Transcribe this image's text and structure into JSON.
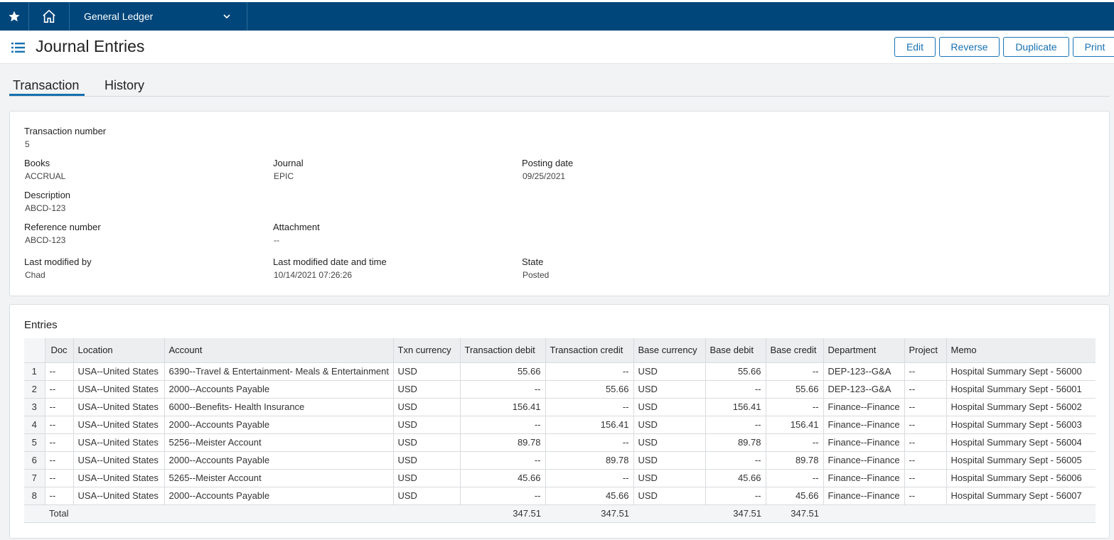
{
  "nav": {
    "menu": "General Ledger"
  },
  "header": {
    "title": "Journal Entries",
    "actions": [
      "Edit",
      "Reverse",
      "Duplicate",
      "Print"
    ]
  },
  "tabs": [
    "Transaction",
    "History"
  ],
  "details": {
    "rows": [
      [
        {
          "label": "Transaction number",
          "value": "5"
        }
      ],
      [
        {
          "label": "Books",
          "value": "ACCRUAL"
        },
        {
          "label": "Journal",
          "value": "EPIC"
        },
        {
          "label": "Posting date",
          "value": "09/25/2021"
        }
      ],
      [
        {
          "label": "Description",
          "value": "ABCD-123"
        }
      ],
      [
        {
          "label": "Reference number",
          "value": "ABCD-123"
        },
        {
          "label": "Attachment",
          "value": "--"
        }
      ],
      [
        {
          "label": "Last modified by",
          "value": "Chad"
        },
        {
          "label": "Last modified date and time",
          "value": "10/14/2021 07:26:26"
        },
        {
          "label": "State",
          "value": "Posted"
        }
      ]
    ]
  },
  "entries": {
    "title": "Entries",
    "columns": [
      "Doc",
      "Location",
      "Account",
      "Txn currency",
      "Transaction debit",
      "Transaction credit",
      "Base currency",
      "Base debit",
      "Base credit",
      "Department",
      "Project",
      "Memo"
    ],
    "rows": [
      {
        "number": "1",
        "cells": [
          "--",
          "USA--United States",
          "6390--Travel & Entertainment- Meals & Entertainment",
          "USD",
          "55.66",
          "--",
          "USD",
          "55.66",
          "--",
          "DEP-123--G&A",
          "--",
          "Hospital Summary Sept - 56000"
        ]
      },
      {
        "number": "2",
        "cells": [
          "--",
          "USA--United States",
          "2000--Accounts Payable",
          "USD",
          "--",
          "55.66",
          "USD",
          "--",
          "55.66",
          "DEP-123--G&A",
          "--",
          "Hospital Summary Sept - 56001"
        ]
      },
      {
        "number": "3",
        "cells": [
          "--",
          "USA--United States",
          "6000--Benefits- Health Insurance",
          "USD",
          "156.41",
          "--",
          "USD",
          "156.41",
          "--",
          "Finance--Finance",
          "--",
          "Hospital Summary Sept - 56002"
        ]
      },
      {
        "number": "4",
        "cells": [
          "--",
          "USA--United States",
          "2000--Accounts Payable",
          "USD",
          "--",
          "156.41",
          "USD",
          "--",
          "156.41",
          "Finance--Finance",
          "--",
          "Hospital Summary Sept - 56003"
        ]
      },
      {
        "number": "5",
        "cells": [
          "--",
          "USA--United States",
          "5256--Meister Account",
          "USD",
          "89.78",
          "--",
          "USD",
          "89.78",
          "--",
          "Finance--Finance",
          "--",
          "Hospital Summary Sept - 56004"
        ]
      },
      {
        "number": "6",
        "cells": [
          "--",
          "USA--United States",
          "2000--Accounts Payable",
          "USD",
          "--",
          "89.78",
          "USD",
          "--",
          "89.78",
          "Finance--Finance",
          "--",
          "Hospital Summary Sept - 56005"
        ]
      },
      {
        "number": "7",
        "cells": [
          "--",
          "USA--United States",
          "5265--Meister Account",
          "USD",
          "45.66",
          "--",
          "USD",
          "45.66",
          "--",
          "Finance--Finance",
          "--",
          "Hospital Summary Sept - 56006"
        ]
      },
      {
        "number": "8",
        "cells": [
          "--",
          "USA--United States",
          "2000--Accounts Payable",
          "USD",
          "--",
          "45.66",
          "USD",
          "--",
          "45.66",
          "Finance--Finance",
          "--",
          "Hospital Summary Sept - 56007"
        ]
      }
    ],
    "total": {
      "cells": [
        "Total",
        null,
        null,
        null,
        "347.51",
        "347.51",
        null,
        "347.51",
        "347.51",
        null,
        null,
        null
      ]
    }
  }
}
